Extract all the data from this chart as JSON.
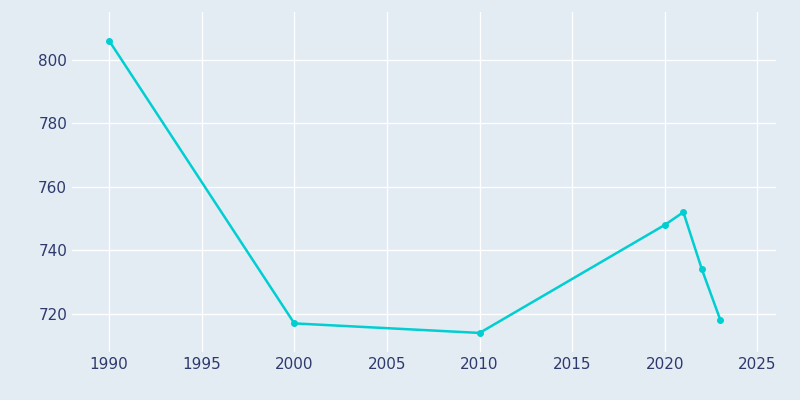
{
  "years": [
    1990,
    2000,
    2010,
    2020,
    2021,
    2022,
    2023
  ],
  "population": [
    806,
    717,
    714,
    748,
    752,
    734,
    718
  ],
  "line_color": "#00CED1",
  "marker_color": "#00CED1",
  "bg_color": "#E3EBF3",
  "grid_color": "#FFFFFF",
  "text_color": "#2E3A6E",
  "xlim": [
    1988,
    2026
  ],
  "ylim": [
    708,
    815
  ],
  "xticks": [
    1990,
    1995,
    2000,
    2005,
    2010,
    2015,
    2020,
    2025
  ],
  "yticks": [
    720,
    740,
    760,
    780,
    800
  ],
  "linewidth": 1.8,
  "marker_size": 4
}
